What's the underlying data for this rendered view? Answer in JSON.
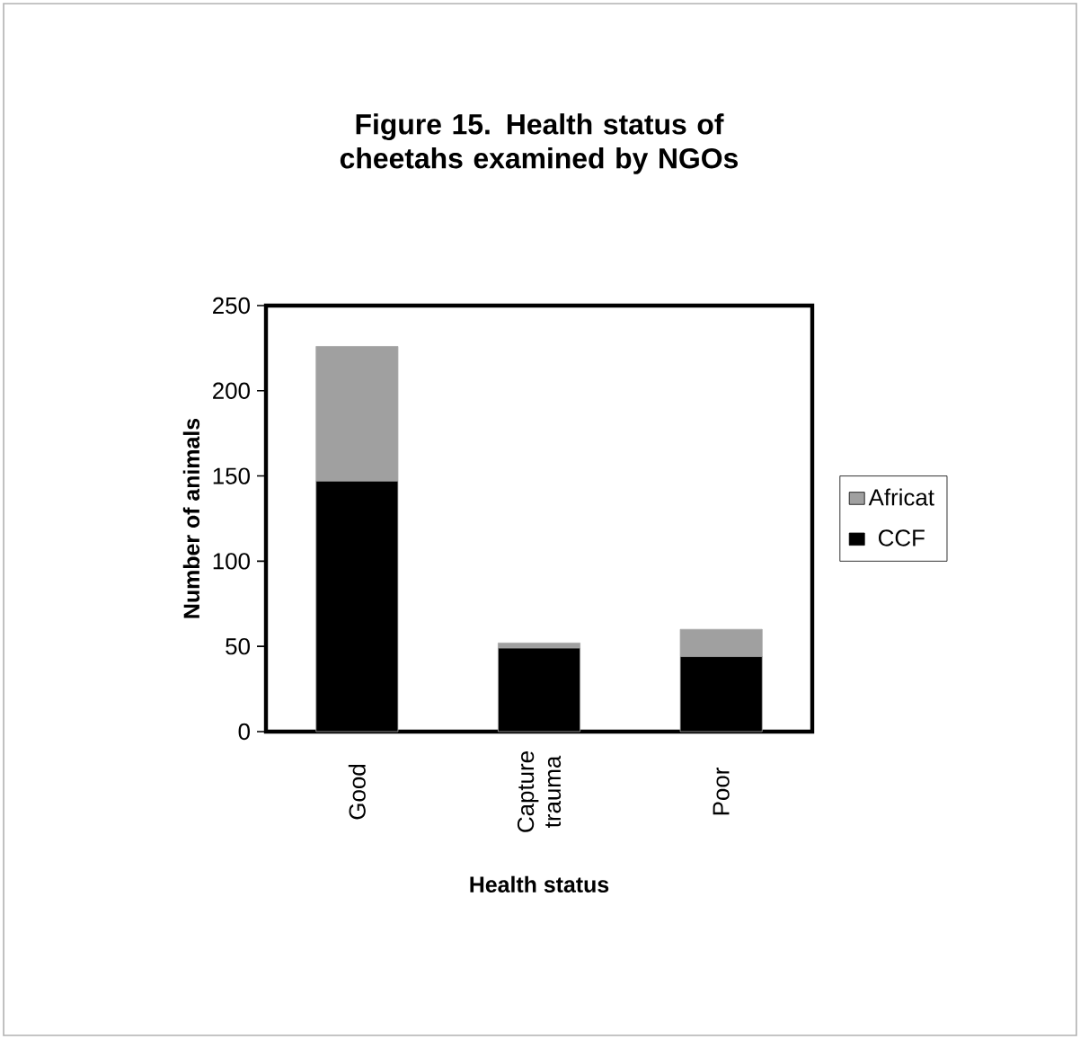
{
  "chart_data": {
    "type": "bar",
    "title": "Figure 15.  Health status of cheetahs examined by NGOs",
    "xlabel": "Health status",
    "ylabel": "Number of animals",
    "categories": [
      "Good",
      "Capture trauma",
      "Poor"
    ],
    "series": [
      {
        "name": "CCF",
        "color": "#000000",
        "values": [
          147,
          49,
          44
        ]
      },
      {
        "name": "Africat",
        "color": "#a0a0a0",
        "values": [
          79,
          3,
          16
        ]
      }
    ],
    "stacked": true,
    "ylim": [
      0,
      250
    ],
    "yticks": [
      0,
      50,
      100,
      150,
      200,
      250
    ],
    "legend": "right",
    "grid": false
  }
}
